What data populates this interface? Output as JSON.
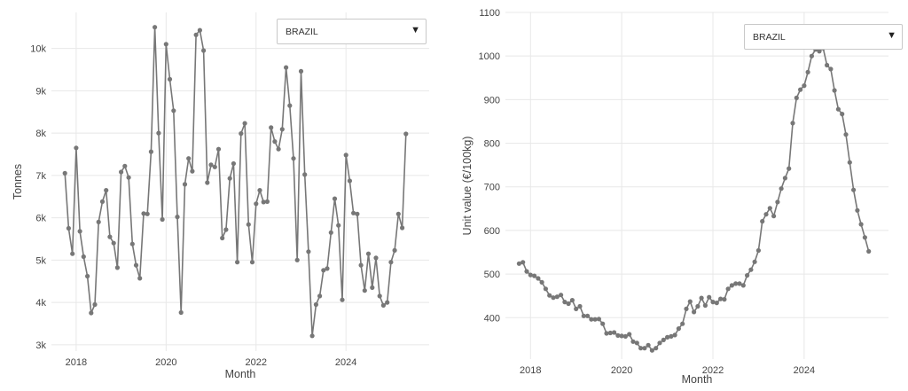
{
  "left_dropdown": {
    "selected": "BRAZIL",
    "caret": "▼",
    "caret_icon": "caret-down-icon"
  },
  "right_dropdown": {
    "selected": "BRAZIL",
    "caret": "▼",
    "caret_icon": "caret-down-icon"
  },
  "chart_data": [
    {
      "type": "line",
      "title": "",
      "xlabel": "Month",
      "ylabel": "Tonnes",
      "x_start": "2017-10",
      "x_step_months": 1,
      "xlim": [
        2017.45,
        2025.85
      ],
      "ylim": [
        2850,
        10850
      ],
      "x_ticks": [
        2018,
        2020,
        2022,
        2024
      ],
      "y_ticks": [
        3000,
        4000,
        5000,
        6000,
        7000,
        8000,
        9000,
        10000
      ],
      "y_tick_labels": [
        "3k",
        "4k",
        "5k",
        "6k",
        "7k",
        "8k",
        "9k",
        "10k"
      ],
      "grid": true,
      "line_color": "#777777",
      "series": [
        {
          "values": [
            7050,
            5750,
            5150,
            7650,
            5680,
            5080,
            4620,
            3750,
            3950,
            5900,
            6380,
            6650,
            5550,
            5400,
            4820,
            7080,
            7220,
            6950,
            5380,
            4880,
            4570,
            6100,
            6090,
            7560,
            10500,
            8000,
            5960,
            10100,
            9270,
            8530,
            6020,
            3760,
            6790,
            7400,
            7100,
            10320,
            10430,
            9950,
            6830,
            7250,
            7200,
            7620,
            5520,
            5720,
            6930,
            7280,
            4950,
            7990,
            8230,
            5840,
            4950,
            6330,
            6650,
            6370,
            6380,
            8130,
            7800,
            7620,
            8090,
            9550,
            8650,
            7400,
            5000,
            9460,
            7020,
            5200,
            3210,
            3950,
            4150,
            4760,
            4800,
            5650,
            6450,
            5820,
            4060,
            7480,
            6870,
            6110,
            6090,
            4880,
            4280,
            5150,
            4350,
            5050,
            4150,
            3930,
            4000,
            4950,
            5230,
            6090,
            5760,
            7980
          ]
        }
      ]
    },
    {
      "type": "line",
      "title": "",
      "xlabel": "Month",
      "ylabel": "Unit value (€/100kg)",
      "x_start": "2017-10",
      "x_step_months": 1,
      "xlim": [
        2017.45,
        2025.85
      ],
      "ylim": [
        305,
        1100
      ],
      "x_ticks": [
        2018,
        2020,
        2022,
        2024
      ],
      "y_ticks": [
        400,
        500,
        600,
        700,
        800,
        900,
        1000,
        1100
      ],
      "y_tick_labels": [
        "400",
        "500",
        "600",
        "700",
        "800",
        "900",
        "1000",
        "1100"
      ],
      "grid": true,
      "line_color": "#777777",
      "series": [
        {
          "values": [
            524,
            527,
            506,
            498,
            496,
            490,
            481,
            466,
            451,
            446,
            448,
            452,
            436,
            432,
            440,
            420,
            426,
            404,
            404,
            396,
            396,
            397,
            386,
            364,
            365,
            366,
            359,
            358,
            357,
            362,
            345,
            342,
            330,
            330,
            337,
            325,
            330,
            342,
            349,
            355,
            357,
            360,
            375,
            386,
            420,
            437,
            413,
            426,
            445,
            428,
            447,
            436,
            434,
            443,
            442,
            466,
            474,
            478,
            478,
            474,
            497,
            510,
            528,
            554,
            621,
            637,
            651,
            633,
            665,
            696,
            720,
            742,
            846,
            904,
            923,
            932,
            963,
            1000,
            1015,
            1011,
            1018,
            979,
            970,
            921,
            878,
            867,
            820,
            756,
            693,
            646,
            614,
            584,
            552
          ]
        }
      ]
    }
  ]
}
